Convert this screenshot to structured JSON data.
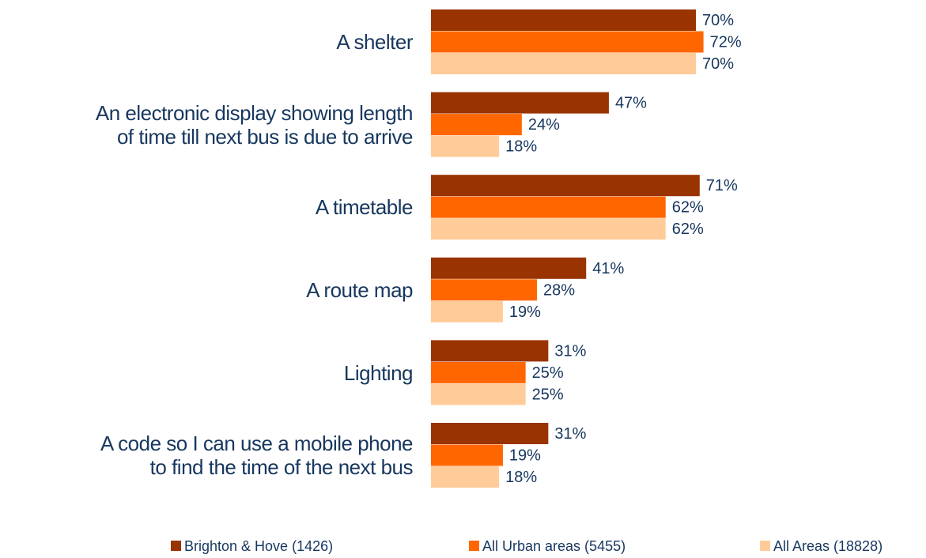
{
  "chart_data": {
    "type": "bar",
    "orientation": "horizontal",
    "categories": [
      "A shelter",
      "An electronic display showing length\nof time till next bus is due to arrive",
      "A timetable",
      "A route map",
      "Lighting",
      "A code so I can use a mobile phone\nto find the time of the next bus"
    ],
    "series": [
      {
        "name": "Brighton & Hove (1426)",
        "color": "#993300",
        "values": [
          70,
          47,
          71,
          41,
          31,
          31
        ],
        "value_labels": [
          "70%",
          "47%",
          "71%",
          "41%",
          "31%",
          "31%"
        ]
      },
      {
        "name": "All Urban areas (5455)",
        "color": "#ff6600",
        "values": [
          72,
          24,
          62,
          28,
          25,
          19
        ],
        "value_labels": [
          "72%",
          "24%",
          "62%",
          "28%",
          "25%",
          "19%"
        ]
      },
      {
        "name": "All Areas (18828)",
        "color": "#ffcc99",
        "values": [
          70,
          18,
          62,
          19,
          25,
          18
        ],
        "value_labels": [
          "70%",
          "18%",
          "62%",
          "19%",
          "25%",
          "18%"
        ]
      }
    ],
    "xlim": [
      0,
      100
    ],
    "legend": "bottom"
  }
}
